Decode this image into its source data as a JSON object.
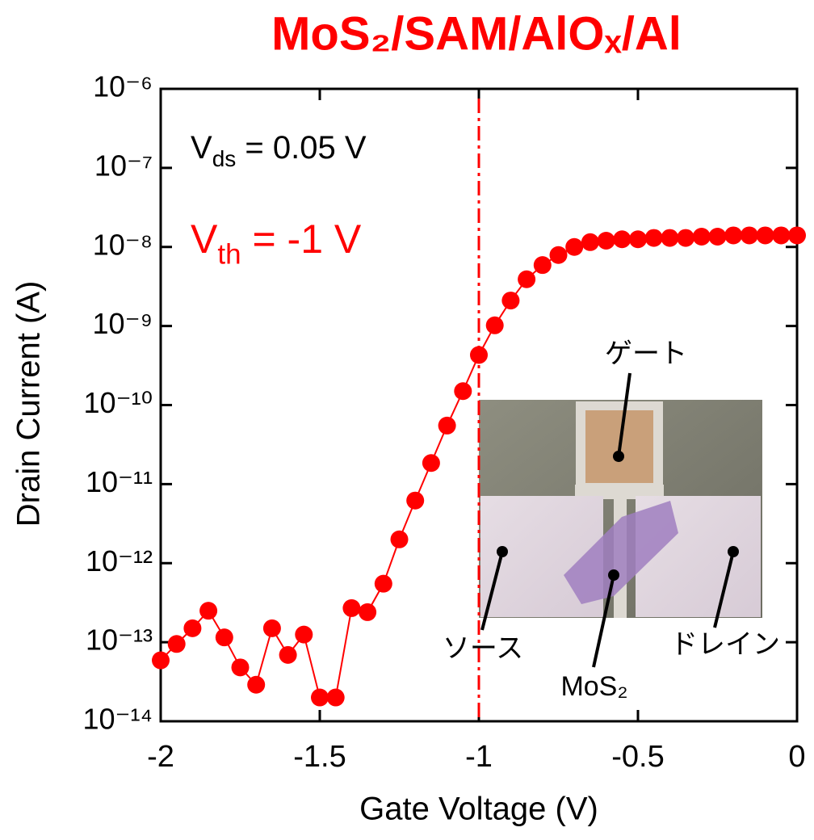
{
  "chart_data": {
    "type": "line",
    "title": "MoS₂/SAM/AlOₓ/Al",
    "xlabel": "Gate Voltage (V)",
    "ylabel": "Drain Current (A)",
    "x": [
      -2,
      -1.95,
      -1.9,
      -1.85,
      -1.8,
      -1.75,
      -1.7,
      -1.65,
      -1.6,
      -1.55,
      -1.5,
      -1.45,
      -1.4,
      -1.35,
      -1.3,
      -1.25,
      -1.2,
      -1.15,
      -1.1,
      -1.05,
      -1,
      -0.95,
      -0.9,
      -0.85,
      -0.8,
      -0.75,
      -0.7,
      -0.65,
      -0.6,
      -0.55,
      -0.5,
      -0.45,
      -0.4,
      -0.35,
      -0.3,
      -0.25,
      -0.2,
      -0.15,
      -0.1,
      -0.05,
      0
    ],
    "series": [
      {
        "color": "#ff0000",
        "values": [
          5.9e-14,
          9.5e-14,
          1.5e-13,
          2.5e-13,
          1.15e-13,
          4.8e-14,
          2.9e-14,
          1.5e-13,
          6.9e-14,
          1.25e-13,
          2e-14,
          2e-14,
          2.7e-13,
          2.4e-13,
          5.5e-13,
          2e-12,
          6.2e-12,
          1.85e-11,
          5.5e-11,
          1.5e-10,
          4.3e-10,
          1.02e-09,
          2.1e-09,
          3.9e-09,
          5.9e-09,
          7.9e-09,
          1e-08,
          1.15e-08,
          1.2e-08,
          1.25e-08,
          1.25e-08,
          1.3e-08,
          1.3e-08,
          1.3e-08,
          1.35e-08,
          1.35e-08,
          1.4e-08,
          1.4e-08,
          1.4e-08,
          1.4e-08,
          1.4e-08
        ]
      }
    ],
    "xlim": [
      -2,
      0
    ],
    "xticks": [
      -2,
      -1.5,
      -1,
      -0.5,
      0
    ],
    "ylim": [
      1e-14,
      1e-06
    ],
    "ylog": true,
    "yticks": [
      {
        "value": 1e-14,
        "label": "10⁻¹⁴"
      },
      {
        "value": 1e-13,
        "label": "10⁻¹³"
      },
      {
        "value": 1e-12,
        "label": "10⁻¹²"
      },
      {
        "value": 1e-11,
        "label": "10⁻¹¹"
      },
      {
        "value": 1e-10,
        "label": "10⁻¹⁰"
      },
      {
        "value": 1e-09,
        "label": "10⁻⁹"
      },
      {
        "value": 1e-08,
        "label": "10⁻⁸"
      },
      {
        "value": 1e-07,
        "label": "10⁻⁷"
      },
      {
        "value": 1e-06,
        "label": "10⁻⁶"
      }
    ],
    "vline": {
      "x": -1,
      "color": "#ff0000"
    },
    "annotations": [
      {
        "main": "V",
        "sub": "ds",
        "rest": " = 0.05 V",
        "color": "#000000"
      },
      {
        "main": "V",
        "sub": "th",
        "rest": " = -1 V",
        "color": "#ff0000"
      }
    ],
    "inset": {
      "labels": [
        "ゲート",
        "ソース",
        "MoS₂",
        "ドレイン"
      ]
    }
  }
}
